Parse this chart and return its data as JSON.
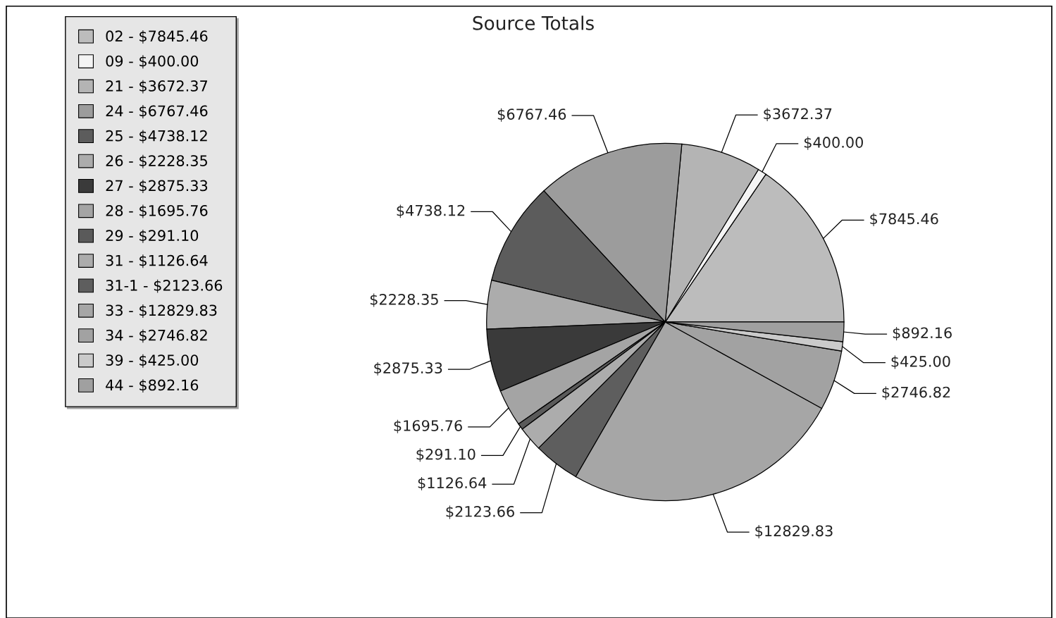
{
  "chart_data": {
    "type": "pie",
    "title": "Source Totals",
    "categories": [
      "02 - $7845.46",
      "09 - $400.00",
      "21 - $3672.37",
      "24 - $6767.46",
      "25 - $4738.12",
      "26 - $2228.35",
      "27 - $2875.33",
      "28 - $1695.76",
      "29 - $291.10",
      "31 - $1126.64",
      "31-1 - $2123.66",
      "33 - $12829.83",
      "34 - $2746.82",
      "39 - $425.00",
      "44 - $892.16"
    ],
    "values": [
      7845.46,
      400.0,
      3672.37,
      6767.46,
      4738.12,
      2228.35,
      2875.33,
      1695.76,
      291.1,
      1126.64,
      2123.66,
      12829.83,
      2746.82,
      425.0,
      892.16
    ],
    "value_labels": [
      "$7845.46",
      "$400.00",
      "$3672.37",
      "$6767.46",
      "$4738.12",
      "$2228.35",
      "$2875.33",
      "$1695.76",
      "$291.10",
      "$1126.64",
      "$2123.66",
      "$12829.83",
      "$2746.82",
      "$425.00",
      "$892.16"
    ],
    "colors": [
      "#bcbcbc",
      "#f4f4f4",
      "#b4b4b4",
      "#9c9c9c",
      "#5c5c5c",
      "#acacac",
      "#3a3a3a",
      "#a4a4a4",
      "#5a5a5a",
      "#acacac",
      "#5e5e5e",
      "#a6a6a6",
      "#a2a2a2",
      "#cacaca",
      "#a0a0a0"
    ],
    "legend": "top left"
  }
}
